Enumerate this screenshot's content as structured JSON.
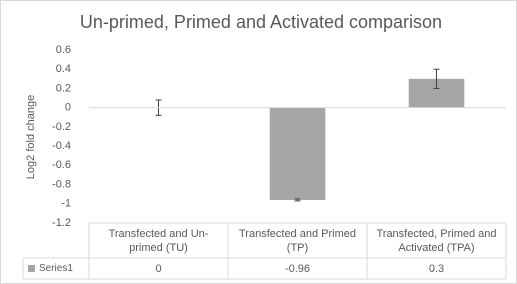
{
  "chart_data": {
    "type": "bar",
    "title": "Un-primed, Primed and Activated comparison",
    "y_label": "Log2 fold change",
    "categories": [
      "Transfected and Un-primed (TU)",
      "Transfected and Primed (TP)",
      "Transfected, Primed and Activated (TPA)"
    ],
    "series": [
      {
        "name": "Series1",
        "color": "#a5a5a5",
        "values": [
          0,
          -0.96,
          0.3
        ],
        "errors": [
          0.08,
          0.01,
          0.1
        ]
      }
    ],
    "ylim": [
      -1.2,
      0.6
    ],
    "yticks": [
      0.6,
      0.4,
      0.2,
      0,
      -0.2,
      -0.4,
      -0.6,
      -0.8,
      -1,
      -1.2
    ],
    "grid": false,
    "data_table": true
  }
}
